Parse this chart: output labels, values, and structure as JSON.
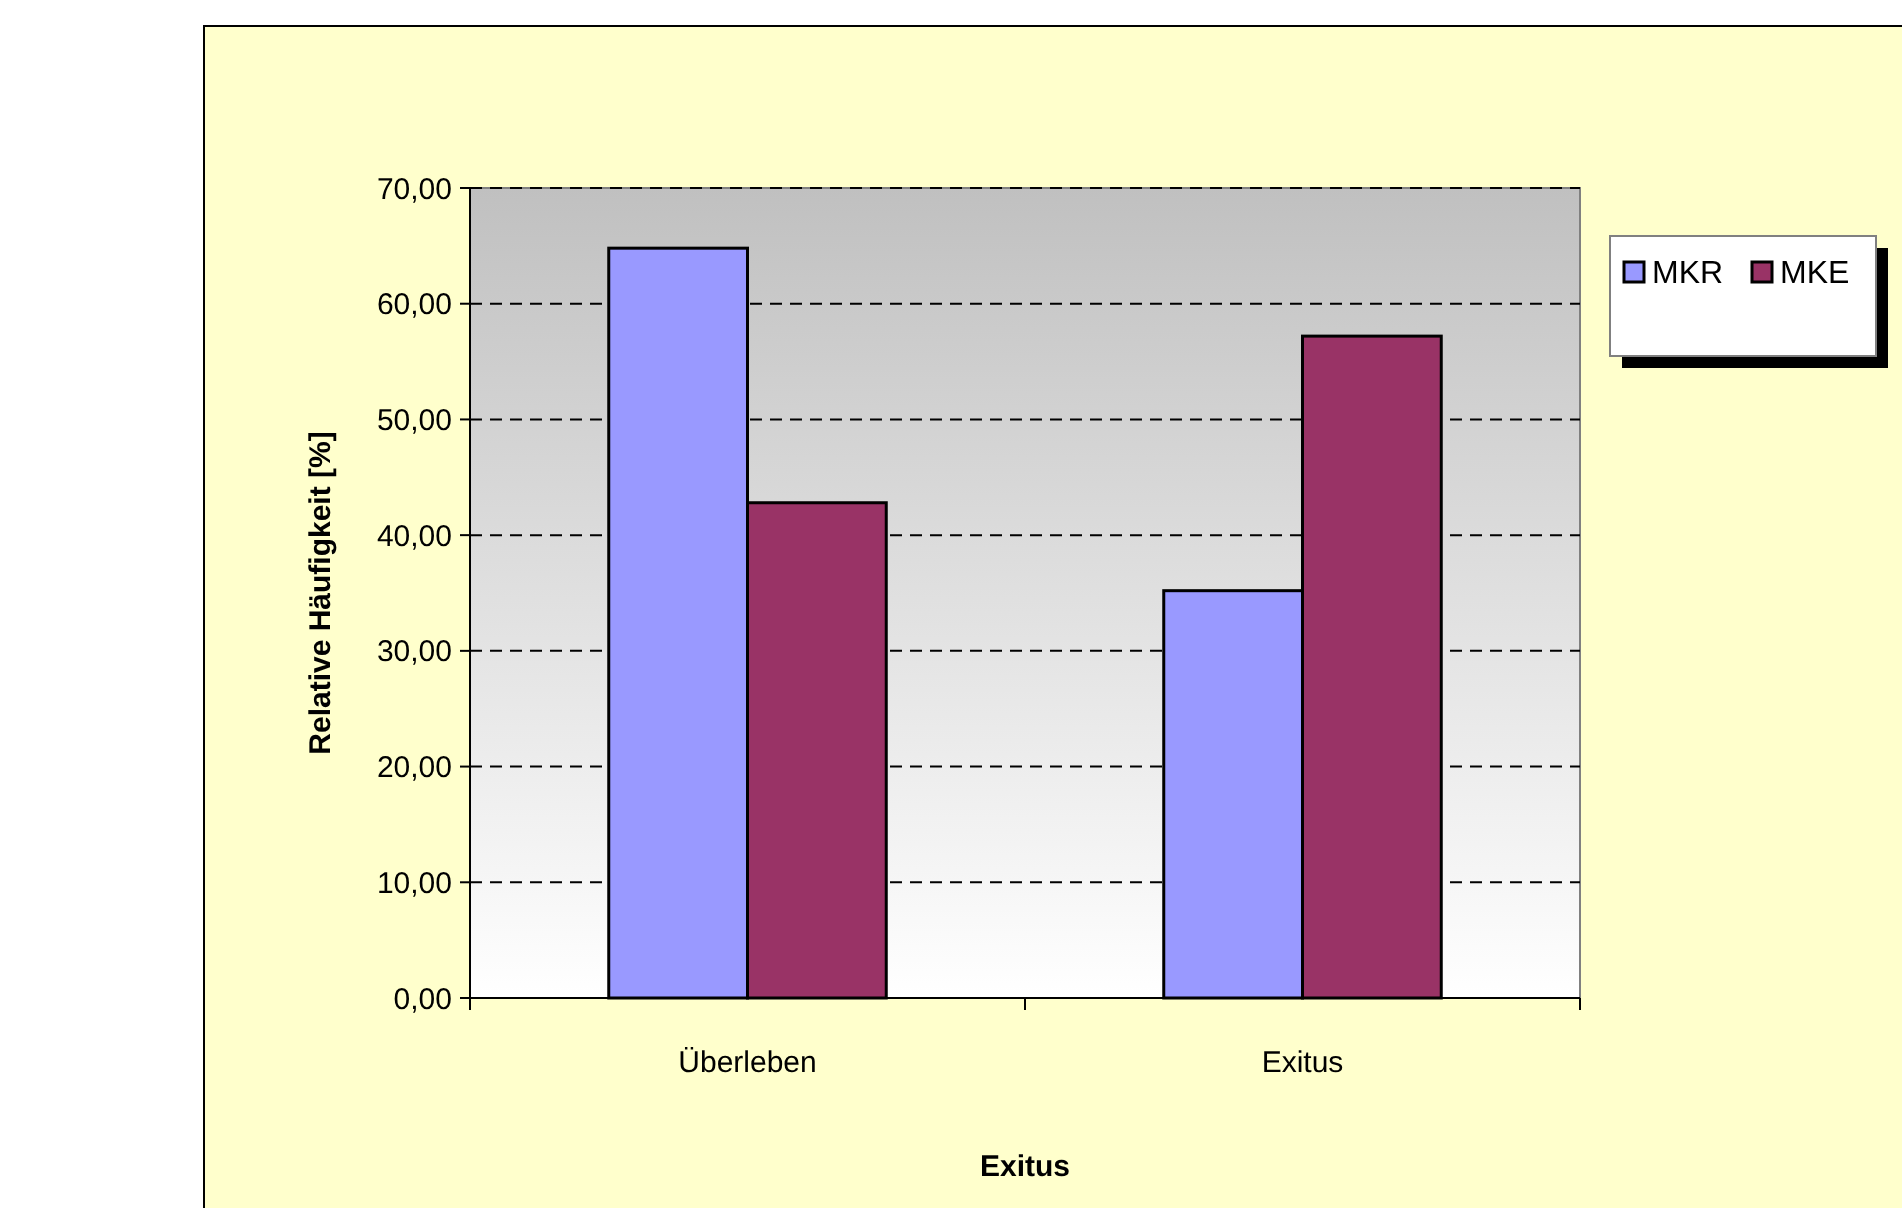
{
  "chart_data": {
    "type": "bar",
    "xlabel": "Exitus",
    "ylabel": "Relative Häufigkeit [%]",
    "categories": [
      "Überleben",
      "Exitus"
    ],
    "series": [
      {
        "name": "MKR",
        "color": "#9999ff",
        "values": [
          64.8,
          35.2
        ]
      },
      {
        "name": "MKE",
        "color": "#993366",
        "values": [
          42.8,
          57.2
        ]
      }
    ],
    "ylim": [
      0,
      70
    ],
    "yticks": [
      {
        "value": 0,
        "label": "0,00"
      },
      {
        "value": 10,
        "label": "10,00"
      },
      {
        "value": 20,
        "label": "20,00"
      },
      {
        "value": 30,
        "label": "30,00"
      },
      {
        "value": 40,
        "label": "40,00"
      },
      {
        "value": 50,
        "label": "50,00"
      },
      {
        "value": 60,
        "label": "60,00"
      },
      {
        "value": 70,
        "label": "70,00"
      }
    ],
    "grid": "y",
    "legend": "top right"
  }
}
